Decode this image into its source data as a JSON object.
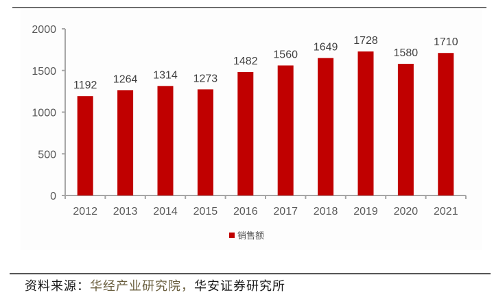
{
  "chart_data": {
    "type": "bar",
    "title": "",
    "xlabel": "",
    "ylabel": "",
    "categories": [
      "2012",
      "2013",
      "2014",
      "2015",
      "2016",
      "2017",
      "2018",
      "2019",
      "2020",
      "2021"
    ],
    "series": [
      {
        "name": "销售额",
        "color": "#c00000",
        "values": [
          1192,
          1264,
          1314,
          1273,
          1482,
          1560,
          1649,
          1728,
          1580,
          1710
        ]
      }
    ],
    "ylim": [
      0,
      2000
    ],
    "yticks": [
      0,
      500,
      1000,
      1500,
      2000
    ],
    "grid": false,
    "data_labels": true,
    "legend_position": "bottom"
  },
  "legend": {
    "label": "销售额",
    "color": "#c00000"
  },
  "source": {
    "label": "资料来源：",
    "body_part1": "华经产业研究院，",
    "body_part2": "华安证券研究所"
  }
}
